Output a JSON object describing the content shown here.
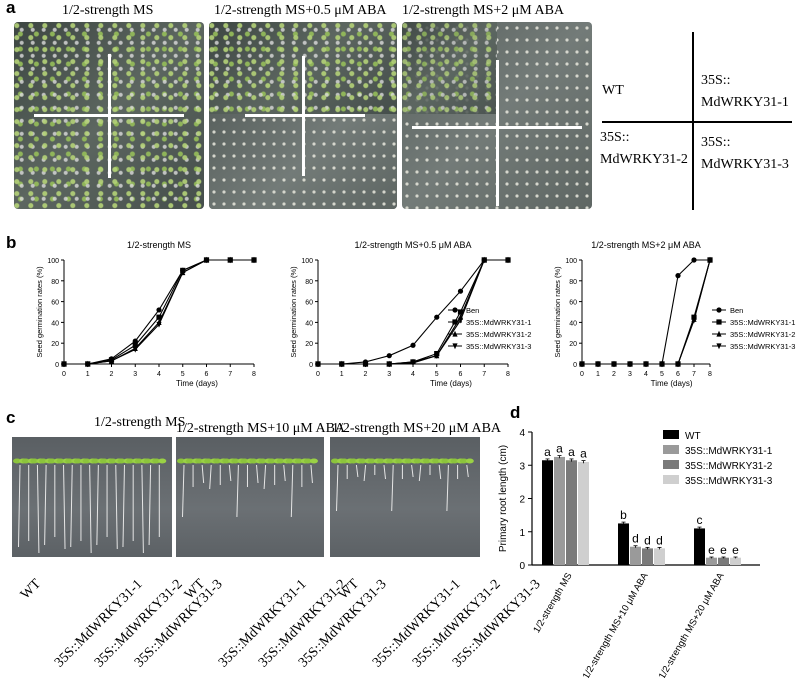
{
  "panel_labels": {
    "a": "a",
    "b": "b",
    "c": "c",
    "d": "d"
  },
  "panel_a": {
    "photo_titles": [
      "1/2-strength MS",
      "1/2-strength MS+0.5 μM ABA",
      "1/2-strength MS+2 μM ABA"
    ],
    "layout_labels": {
      "top_left": "WT",
      "top_right": "35S::\nMdWRKY31-1",
      "bottom_left": "35S::\nMdWRKY31-2",
      "bottom_right": "35S::\nMdWRKY31-3"
    }
  },
  "panel_c": {
    "photo_titles": [
      "1/2-strength MS",
      "1/2-strength MS+10 μM ABA",
      "1/2-strength MS+20 μM ABA"
    ],
    "genotype_labels": [
      "WT",
      "35S::MdWRKY31-1",
      "35S::MdWRKY31-2",
      "35S::MdWRKY31-3"
    ]
  },
  "chart_data": [
    {
      "id": "b1",
      "type": "line",
      "title": "1/2-strength MS",
      "xlabel": "Time (days)",
      "ylabel": "Seed germination rates (%)",
      "x": [
        0,
        1,
        2,
        3,
        4,
        5,
        6,
        7,
        8
      ],
      "xlim": [
        0,
        8
      ],
      "ylim": [
        0,
        100
      ],
      "xticks": [
        "0",
        "1",
        "2",
        "3",
        "4",
        "5",
        "6",
        "7",
        "8"
      ],
      "yticks": [
        "0",
        "20",
        "40",
        "60",
        "80",
        "100"
      ],
      "legend": "none",
      "series": [
        {
          "name": "Ben",
          "marker": "circle",
          "values": [
            0,
            0,
            5,
            22,
            52,
            90,
            100,
            100,
            100
          ]
        },
        {
          "name": "35S::MdWRKY31-1",
          "marker": "square",
          "values": [
            0,
            0,
            4,
            18,
            45,
            90,
            100,
            100,
            100
          ]
        },
        {
          "name": "35S::MdWRKY31-2",
          "marker": "triangle-up",
          "values": [
            0,
            0,
            3,
            15,
            40,
            88,
            100,
            100,
            100
          ]
        },
        {
          "name": "35S::MdWRKY31-3",
          "marker": "triangle-down",
          "values": [
            0,
            0,
            3,
            14,
            38,
            88,
            100,
            100,
            100
          ]
        }
      ]
    },
    {
      "id": "b2",
      "type": "line",
      "title": "1/2-strength MS+0.5 μM ABA",
      "xlabel": "Time (days)",
      "ylabel": "Seed germination rates (%)",
      "x": [
        0,
        1,
        2,
        3,
        4,
        5,
        6,
        7,
        8
      ],
      "xlim": [
        0,
        8
      ],
      "ylim": [
        0,
        100
      ],
      "xticks": [
        "0",
        "1",
        "2",
        "3",
        "4",
        "5",
        "6",
        "7",
        "8"
      ],
      "yticks": [
        "0",
        "20",
        "40",
        "60",
        "80",
        "100"
      ],
      "legend": "right",
      "series": [
        {
          "name": "Ben",
          "marker": "circle",
          "values": [
            0,
            0,
            2,
            8,
            18,
            45,
            70,
            100,
            100
          ]
        },
        {
          "name": "35S::MdWRKY31-1",
          "marker": "square",
          "values": [
            0,
            0,
            0,
            0,
            2,
            10,
            50,
            100,
            100
          ]
        },
        {
          "name": "35S::MdWRKY31-2",
          "marker": "triangle-up",
          "values": [
            0,
            0,
            0,
            0,
            2,
            8,
            45,
            100,
            100
          ]
        },
        {
          "name": "35S::MdWRKY31-3",
          "marker": "triangle-down",
          "values": [
            0,
            0,
            0,
            0,
            1,
            8,
            42,
            100,
            100
          ]
        }
      ]
    },
    {
      "id": "b3",
      "type": "line",
      "title": "1/2-strength MS+2 μM ABA",
      "xlabel": "Time (days)",
      "ylabel": "Seed germination rates (%)",
      "x": [
        0,
        1,
        2,
        3,
        4,
        5,
        6,
        7,
        8
      ],
      "xlim": [
        0,
        8
      ],
      "ylim": [
        0,
        100
      ],
      "xticks": [
        "0",
        "1",
        "2",
        "3",
        "4",
        "5",
        "6",
        "7",
        "8"
      ],
      "yticks": [
        "0",
        "20",
        "40",
        "60",
        "80",
        "100"
      ],
      "legend": "right",
      "series": [
        {
          "name": "Ben",
          "marker": "circle",
          "values": [
            0,
            0,
            0,
            0,
            0,
            0,
            85,
            100,
            100
          ]
        },
        {
          "name": "35S::MdWRKY31-1",
          "marker": "square",
          "values": [
            0,
            0,
            0,
            0,
            0,
            0,
            0,
            45,
            100
          ]
        },
        {
          "name": "35S::MdWRKY31-2",
          "marker": "triangle-up",
          "values": [
            0,
            0,
            0,
            0,
            0,
            0,
            0,
            43,
            100
          ]
        },
        {
          "name": "35S::MdWRKY31-3",
          "marker": "triangle-down",
          "values": [
            0,
            0,
            0,
            0,
            0,
            0,
            0,
            42,
            100
          ]
        }
      ]
    },
    {
      "id": "d",
      "type": "bar",
      "title": "",
      "xlabel": "",
      "ylabel": "Primary root length (cm)",
      "categories": [
        "1/2-strength MS",
        "1/2-strength MS+10 μM ABA",
        "1/2-strength MS+20 μM ABA"
      ],
      "ylim": [
        0,
        4
      ],
      "yticks": [
        "0",
        "1",
        "2",
        "3",
        "4"
      ],
      "legend": "top-right",
      "series": [
        {
          "name": "WT",
          "color": "#000000",
          "values": [
            3.15,
            1.25,
            1.1
          ],
          "errors": [
            0.04,
            0.04,
            0.04
          ],
          "letters": [
            "a",
            "b",
            "c"
          ]
        },
        {
          "name": "35S::MdWRKY31-1",
          "color": "#9a9a9a",
          "values": [
            3.25,
            0.55,
            0.22
          ],
          "errors": [
            0.04,
            0.03,
            0.02
          ],
          "letters": [
            "a",
            "d",
            "e"
          ]
        },
        {
          "name": "35S::MdWRKY31-2",
          "color": "#7a7a7a",
          "values": [
            3.15,
            0.5,
            0.22
          ],
          "errors": [
            0.04,
            0.03,
            0.02
          ],
          "letters": [
            "a",
            "d",
            "e"
          ]
        },
        {
          "name": "35S::MdWRKY31-3",
          "color": "#cfcfcf",
          "values": [
            3.1,
            0.5,
            0.22
          ],
          "errors": [
            0.04,
            0.03,
            0.02
          ],
          "letters": [
            "a",
            "d",
            "e"
          ]
        }
      ]
    }
  ]
}
